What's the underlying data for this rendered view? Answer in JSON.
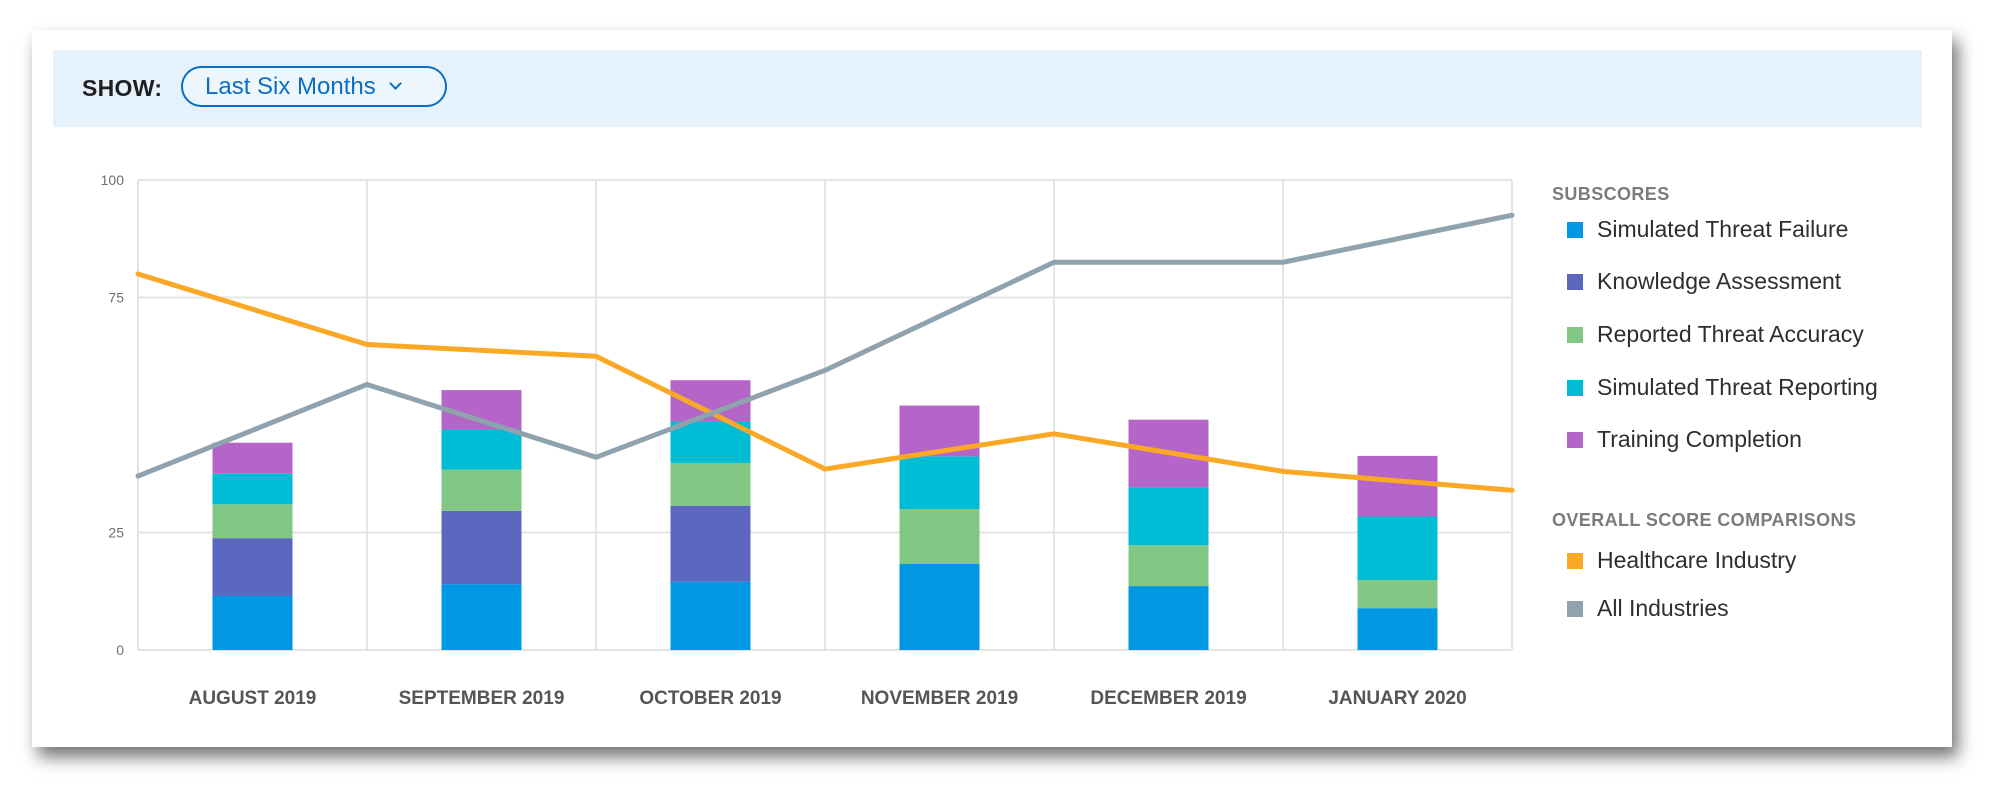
{
  "filter": {
    "show_label": "SHOW:",
    "range_selected": "Last Six Months"
  },
  "legend": {
    "subscores_heading": "SUBSCORES",
    "subscores": [
      {
        "label": "Simulated Threat Failure",
        "color": "#0097e3"
      },
      {
        "label": "Knowledge Assessment",
        "color": "#5c67c0"
      },
      {
        "label": "Reported Threat Accuracy",
        "color": "#82c784"
      },
      {
        "label": "Simulated Threat Reporting",
        "color": "#00bcd4"
      },
      {
        "label": "Training Completion",
        "color": "#b565c8"
      }
    ],
    "comparisons_heading": "OVERALL SCORE COMPARISONS",
    "comparisons": [
      {
        "label": "Healthcare Industry",
        "color": "#fba826"
      },
      {
        "label": "All Industries",
        "color": "#8fa3ae"
      }
    ]
  },
  "chart_data": {
    "type": "bar",
    "stacked": true,
    "categories": [
      "AUGUST 2019",
      "SEPTEMBER 2019",
      "OCTOBER 2019",
      "NOVEMBER 2019",
      "DECEMBER 2019",
      "JANUARY 2020"
    ],
    "series": [
      {
        "name": "Simulated Threat Failure",
        "color": "#0097e3",
        "values": [
          11.5,
          14,
          14.5,
          18.3,
          13.6,
          8.9
        ]
      },
      {
        "name": "Knowledge Assessment",
        "color": "#5c67c0",
        "values": [
          12.3,
          15.6,
          16.2,
          0,
          0,
          0
        ]
      },
      {
        "name": "Reported Threat Accuracy",
        "color": "#82c784",
        "values": [
          7.2,
          8.8,
          9.1,
          11.7,
          8.7,
          6
        ]
      },
      {
        "name": "Simulated Threat Reporting",
        "color": "#00bcd4",
        "values": [
          6.5,
          8.5,
          8.8,
          11.2,
          12.3,
          13.5
        ]
      },
      {
        "name": "Training Completion",
        "color": "#b565c8",
        "values": [
          6.6,
          8.4,
          8.8,
          10.8,
          14.4,
          12.9
        ]
      }
    ],
    "lines": [
      {
        "name": "Healthcare Industry",
        "color": "#fba826",
        "x": [
          0,
          1,
          2,
          3,
          4,
          5,
          6
        ],
        "y": [
          80,
          65,
          62.5,
          38.5,
          46,
          38,
          34
        ]
      },
      {
        "name": "All Industries",
        "color": "#8fa3ae",
        "x": [
          0,
          1,
          2,
          3,
          4,
          5,
          6
        ],
        "y": [
          37,
          56.5,
          41,
          59.5,
          82.5,
          82.5,
          92.5
        ]
      }
    ],
    "yticks": [
      0,
      25,
      75,
      100
    ],
    "ylim": [
      0,
      100
    ],
    "grid": true,
    "legend_position": "right"
  }
}
